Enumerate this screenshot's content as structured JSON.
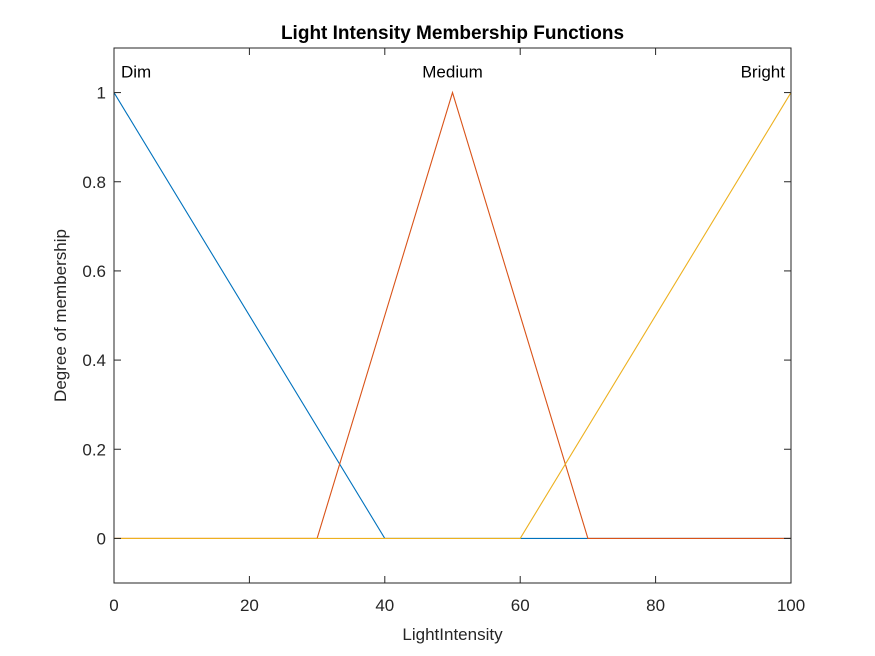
{
  "chart_data": {
    "type": "line",
    "title": "Light Intensity Membership Functions",
    "xlabel": "LightIntensity",
    "ylabel": "Degree of membership",
    "xlim": [
      0,
      100
    ],
    "ylim": [
      -0.1,
      1.1
    ],
    "xticks": [
      0,
      20,
      40,
      60,
      80,
      100
    ],
    "xtick_labels": [
      "0",
      "20",
      "40",
      "60",
      "80",
      "100"
    ],
    "yticks": [
      0,
      0.2,
      0.4,
      0.6,
      0.8,
      1
    ],
    "ytick_labels": [
      "0",
      "0.2",
      "0.4",
      "0.6",
      "0.8",
      "1"
    ],
    "grid": false,
    "series": [
      {
        "name": "Dim",
        "color": "#0072BD",
        "x": [
          0,
          40,
          100
        ],
        "y": [
          1,
          0,
          0
        ],
        "label_anchor": "start"
      },
      {
        "name": "Medium",
        "color": "#D95319",
        "x": [
          0,
          30,
          50,
          70,
          100
        ],
        "y": [
          0,
          0,
          1,
          0,
          0
        ],
        "label_anchor": "middle"
      },
      {
        "name": "Bright",
        "color": "#EDB120",
        "x": [
          0,
          60,
          100
        ],
        "y": [
          0,
          0,
          1
        ],
        "label_anchor": "end"
      }
    ]
  }
}
